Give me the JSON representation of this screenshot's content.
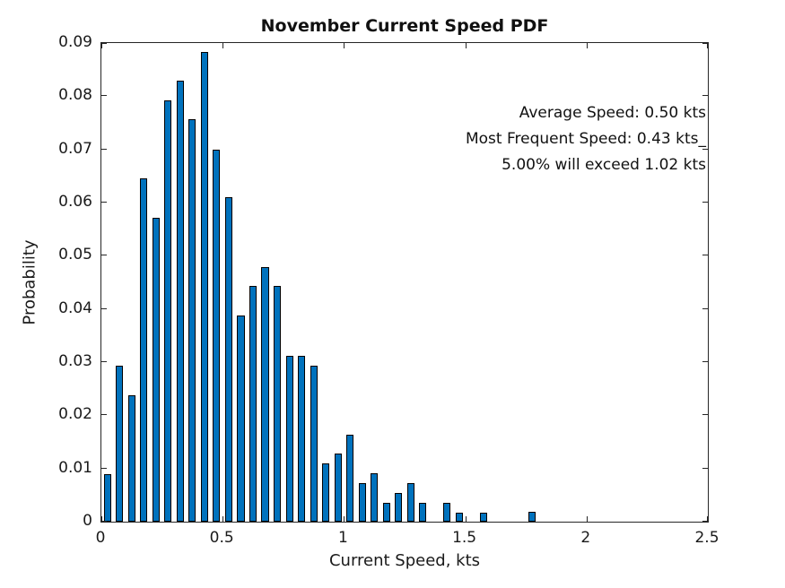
{
  "figure": {
    "title": "November Current Speed PDF",
    "x_axis_label": "Current Speed, kts",
    "y_axis_label": "Probability",
    "annotation_lines": [
      "Average Speed: 0.50 kts",
      "Most Frequent Speed: 0.43 kts_",
      "5.00% will exceed 1.02 kts"
    ]
  },
  "chart_data": {
    "type": "bar",
    "title": "November Current Speed PDF",
    "xlabel": "Current Speed, kts",
    "ylabel": "Probability",
    "xlim": [
      0,
      2.5
    ],
    "ylim": [
      0,
      0.09
    ],
    "grid": false,
    "bin_spacing_kts": 0.05,
    "bar_display_width_kts": 0.03,
    "bar_color": "#0072BD",
    "bar_edge_color": "#000000",
    "axis_color": "#262626",
    "x_ticks": {
      "values": [
        0,
        0.5,
        1,
        1.5,
        2,
        2.5
      ],
      "labels": [
        "0",
        "0.5",
        "1",
        "1.5",
        "2",
        "2.5"
      ]
    },
    "y_ticks": {
      "values": [
        0,
        0.01,
        0.02,
        0.03,
        0.04,
        0.05,
        0.06,
        0.07,
        0.08,
        0.09
      ],
      "labels": [
        "0",
        "0.01",
        "0.02",
        "0.03",
        "0.04",
        "0.05",
        "0.06",
        "0.07",
        "0.08",
        "0.09"
      ]
    },
    "x": [
      0.025,
      0.075,
      0.125,
      0.175,
      0.225,
      0.275,
      0.325,
      0.375,
      0.425,
      0.475,
      0.525,
      0.575,
      0.625,
      0.675,
      0.725,
      0.775,
      0.825,
      0.875,
      0.925,
      0.975,
      1.025,
      1.075,
      1.125,
      1.175,
      1.225,
      1.275,
      1.325,
      1.375,
      1.425,
      1.475,
      1.525,
      1.575,
      1.625,
      1.675,
      1.725,
      1.775
    ],
    "values": [
      0.009,
      0.0294,
      0.0238,
      0.0646,
      0.0572,
      0.0792,
      0.0829,
      0.0756,
      0.0884,
      0.07,
      0.061,
      0.0388,
      0.0443,
      0.0479,
      0.0443,
      0.0312,
      0.0312,
      0.0294,
      0.011,
      0.0128,
      0.0164,
      0.0072,
      0.0091,
      0.0035,
      0.0054,
      0.0072,
      0.0035,
      0,
      0.0035,
      0.0017,
      0,
      0.0017,
      0,
      0,
      0,
      0.0018
    ],
    "annotations": [
      "Average Speed: 0.50 kts",
      "Most Frequent Speed: 0.43 kts_",
      "5.00% will exceed 1.02 kts"
    ],
    "stats": {
      "average_speed_kts": 0.5,
      "most_frequent_speed_kts": 0.43,
      "exceedance_5_percent_kts": 1.02
    },
    "legend": null
  }
}
